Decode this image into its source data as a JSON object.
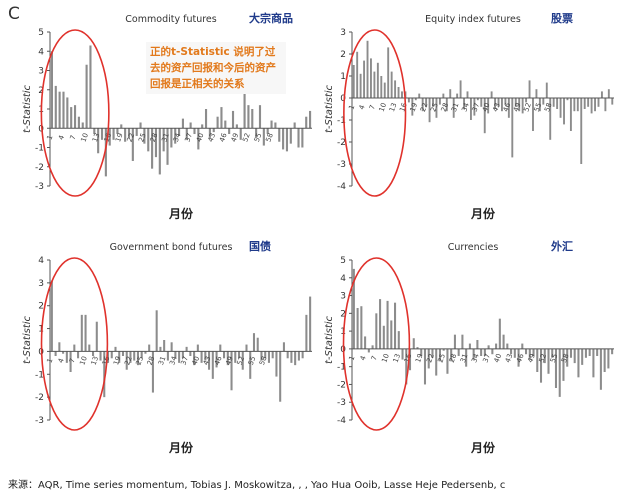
{
  "panel_label": "C",
  "annotation": "正的t-Statistic 说明了过去的资产回报和今后的资产回报是正相关的关系",
  "source": "来源：AQR, Time series momentum, Tobias J. Moskowitza, , , Yao Hua Ooib, Lasse Heje Pedersenb, c",
  "colors": {
    "bar": "#8c8c8c",
    "circle": "#e0322c",
    "title_cn": "#1f3a8a",
    "axis": "#555555",
    "grid": "#bfbfbf"
  },
  "chart_data": [
    {
      "type": "bar",
      "title": "Commodity futures",
      "title_cn": "大宗商品",
      "xlabel": "月份",
      "ylabel": "t-Statistic",
      "ylim": [
        -3,
        5
      ],
      "yticks": [
        -3,
        -2,
        -1,
        0,
        1,
        2,
        3,
        4,
        5
      ],
      "tick_every": 3,
      "tick_labels": [
        "1",
        "4",
        "7",
        "10",
        "13",
        "16",
        "19",
        "22",
        "25",
        "28",
        "31",
        "34",
        "37",
        "40",
        "43",
        "46",
        "49",
        "52",
        "55",
        "58"
      ],
      "values": [
        4.0,
        2.2,
        1.9,
        1.9,
        1.6,
        1.1,
        1.2,
        0.6,
        0.3,
        3.3,
        4.3,
        -0.3,
        -1.3,
        -0.6,
        -2.5,
        -0.9,
        -0.6,
        -0.3,
        0.2,
        -0.7,
        -0.5,
        -1.7,
        -0.4,
        0.3,
        -0.8,
        -1.2,
        -2.1,
        -1.5,
        -2.4,
        -1.2,
        -1.9,
        -1.0,
        -0.8,
        -0.4,
        0.5,
        -0.6,
        0.3,
        -0.3,
        -1.1,
        0.2,
        1.0,
        -0.5,
        -0.2,
        0.6,
        1.1,
        0.4,
        -0.3,
        0.9,
        0.2,
        -0.6,
        1.8,
        1.2,
        1.0,
        -0.5,
        1.2,
        -0.9,
        -0.3,
        0.4,
        0.3,
        -0.7,
        -1.1,
        -1.2,
        -0.8,
        0.3,
        -1.0,
        -1.0,
        0.6,
        0.9
      ]
    },
    {
      "type": "bar",
      "title": "Equity index futures",
      "title_cn": "股票",
      "xlabel": "月份",
      "ylabel": "t-Statistic",
      "ylim": [
        -4,
        3
      ],
      "yticks": [
        -4,
        -3,
        -2,
        -1,
        0,
        1,
        2,
        3
      ],
      "tick_every": 3,
      "tick_labels": [
        "1",
        "4",
        "7",
        "10",
        "13",
        "16",
        "19",
        "22",
        "25",
        "28",
        "31",
        "34",
        "37",
        "40",
        "43",
        "46",
        "49",
        "52",
        "55",
        "58"
      ],
      "values": [
        1.5,
        2.1,
        1.1,
        1.7,
        2.6,
        1.8,
        1.2,
        1.6,
        1.0,
        0.7,
        2.3,
        1.2,
        0.8,
        0.5,
        0.3,
        0.3,
        -0.2,
        -0.8,
        -0.1,
        0.2,
        -0.6,
        -0.4,
        -1.1,
        -0.4,
        -0.9,
        -0.3,
        0.2,
        -0.6,
        0.4,
        -0.9,
        0.2,
        0.8,
        -0.5,
        0.3,
        -1.0,
        -0.8,
        -0.1,
        -0.4,
        -1.6,
        -0.7,
        0.3,
        -0.5,
        -0.4,
        -0.6,
        -0.3,
        -0.9,
        -2.7,
        -0.4,
        -0.6,
        -0.7,
        -0.2,
        0.8,
        -1.5,
        0.4,
        -0.6,
        -0.3,
        0.7,
        -1.9,
        -0.4,
        -0.5,
        -0.9,
        -1.2,
        -0.1,
        -1.5,
        -0.6,
        -0.6,
        -3.0,
        -0.5,
        -0.4,
        -0.7,
        -0.6,
        -0.4,
        0.3,
        -0.6,
        0.4,
        -0.3
      ]
    },
    {
      "type": "bar",
      "title": "Government bond futures",
      "title_cn": "国债",
      "xlabel": "月份",
      "ylabel": "t-Statistic",
      "ylim": [
        -3,
        4
      ],
      "yticks": [
        -3,
        -2,
        -1,
        0,
        1,
        2,
        3,
        4
      ],
      "tick_every": 3,
      "tick_labels": [
        "1",
        "4",
        "7",
        "10",
        "13",
        "16",
        "19",
        "22",
        "25",
        "28",
        "31",
        "34",
        "37",
        "40",
        "43",
        "46",
        "49",
        "52",
        "55",
        "58"
      ],
      "values": [
        3.1,
        -0.2,
        0.4,
        -0.1,
        -0.5,
        -0.9,
        0.3,
        -0.3,
        1.6,
        1.6,
        0.3,
        -0.2,
        1.3,
        -0.4,
        -2.0,
        -0.5,
        -0.3,
        0.2,
        -0.5,
        -0.2,
        -0.8,
        -0.5,
        -0.4,
        -0.6,
        -0.3,
        -0.1,
        0.3,
        -1.8,
        1.8,
        0.2,
        0.5,
        -0.4,
        0.4,
        -0.3,
        -0.5,
        -0.3,
        0.2,
        -0.2,
        -0.6,
        0.3,
        -0.5,
        -0.4,
        -0.8,
        -1.2,
        -0.7,
        0.3,
        -0.3,
        -0.6,
        -1.7,
        -0.5,
        -0.3,
        -0.8,
        0.3,
        -1.2,
        0.8,
        0.6,
        -0.4,
        -0.3,
        -0.5,
        -0.3,
        -1.1,
        -2.2,
        0.4,
        -0.3,
        -0.5,
        -0.6,
        -0.4,
        -0.3,
        1.6,
        2.4
      ]
    },
    {
      "type": "bar",
      "title": "Currencies",
      "title_cn": "外汇",
      "xlabel": "月份",
      "ylabel": "t-Statistic",
      "ylim": [
        -4,
        5
      ],
      "yticks": [
        -4,
        -3,
        -2,
        -1,
        0,
        1,
        2,
        3,
        4,
        5
      ],
      "tick_every": 3,
      "tick_labels": [
        "1",
        "4",
        "7",
        "10",
        "13",
        "16",
        "19",
        "22",
        "25",
        "28",
        "31",
        "34",
        "37",
        "40",
        "43",
        "46",
        "49",
        "52",
        "55",
        "58"
      ],
      "values": [
        4.5,
        2.3,
        2.4,
        0.7,
        -0.2,
        0.2,
        2.0,
        2.8,
        1.3,
        2.7,
        1.6,
        2.6,
        1.0,
        -0.6,
        -2.0,
        -1.2,
        0.6,
        0.1,
        -0.4,
        -2.0,
        -1.1,
        -0.5,
        -1.5,
        -0.7,
        -0.1,
        -1.4,
        -0.7,
        0.8,
        -0.4,
        0.8,
        -1.0,
        0.3,
        -0.6,
        0.5,
        -0.4,
        -0.4,
        0.2,
        -0.3,
        0.3,
        1.7,
        0.8,
        0.3,
        -0.3,
        -0.5,
        -1.0,
        0.3,
        -0.3,
        -0.6,
        -0.4,
        -1.3,
        -1.9,
        -0.8,
        -1.4,
        -0.5,
        -2.2,
        -2.7,
        -1.8,
        -1.0,
        -0.5,
        -0.8,
        -1.6,
        -0.9,
        -0.5,
        -0.4,
        -1.6,
        -0.4,
        -2.3,
        -1.3,
        -1.1,
        -0.3
      ]
    }
  ]
}
